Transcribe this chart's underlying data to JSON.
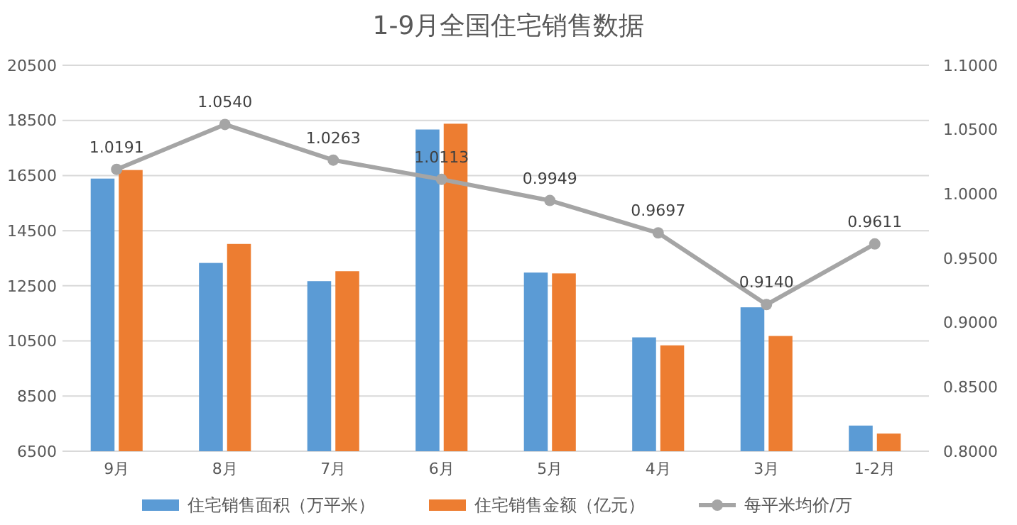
{
  "chart_data": {
    "type": "bar",
    "title": "1-9月全国住宅销售数据",
    "categories": [
      "9月",
      "8月",
      "7月",
      "6月",
      "5月",
      "4月",
      "3月",
      "1-2月"
    ],
    "series": [
      {
        "name": "住宅销售面积（万平米）",
        "color": "#5b9bd5",
        "values": [
          16390,
          13330,
          12670,
          18170,
          12980,
          10630,
          11720,
          7430
        ]
      },
      {
        "name": "住宅销售金额（亿元）",
        "color": "#ed7d31",
        "values": [
          16700,
          14020,
          13030,
          18380,
          12950,
          10340,
          10680,
          7140
        ]
      },
      {
        "name": "每平米均价/万",
        "type": "line",
        "axis": "y2",
        "color": "#a5a5a5",
        "marker": "circle",
        "values": [
          1.0191,
          1.054,
          1.0263,
          1.0113,
          0.9949,
          0.9697,
          0.914,
          0.9611
        ],
        "value_labels": [
          "1.0191",
          "1.0540",
          "1.0263",
          "1.0113",
          "0.9949",
          "0.9697",
          "0.9140",
          "0.9611"
        ]
      }
    ],
    "ylim": [
      6500,
      20500
    ],
    "yticks": [
      6500,
      8500,
      10500,
      12500,
      14500,
      16500,
      18500,
      20500
    ],
    "y2lim": [
      0.8,
      1.1
    ],
    "y2ticks": [
      {
        "value": 0.8,
        "label": "0.8000"
      },
      {
        "value": 0.85,
        "label": "0.8500"
      },
      {
        "value": 0.9,
        "label": "0.9000"
      },
      {
        "value": 0.95,
        "label": "0.9500"
      },
      {
        "value": 1.0,
        "label": "1.0000"
      },
      {
        "value": 1.05,
        "label": "1.0500"
      },
      {
        "value": 1.1,
        "label": "1.1000"
      }
    ],
    "grid": "y",
    "legend": "bottom"
  }
}
